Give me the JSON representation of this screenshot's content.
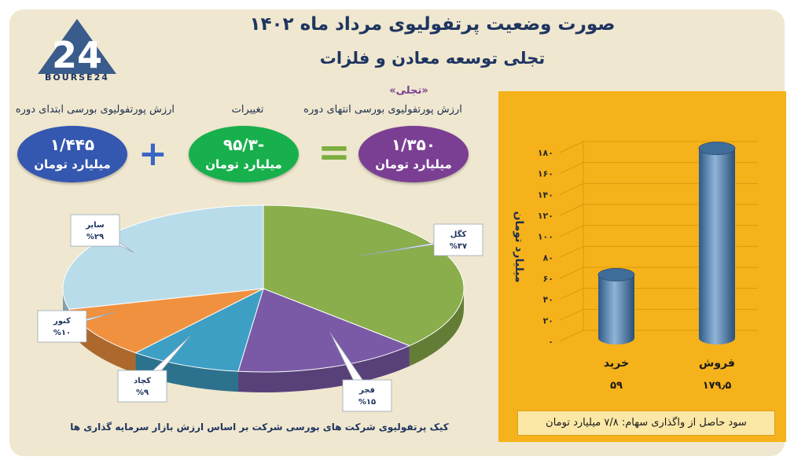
{
  "header": {
    "title": "صورت وضعیت پرتفولیوی مرداد ماه ۱۴۰۲",
    "subtitle": "تجلی توسعه معادن و فلزات",
    "logo_text": "BOURSE24"
  },
  "summary": {
    "tag": "«تجلی»",
    "start": {
      "caption": "ارزش پورتفولیوی بورسی ابتدای دوره",
      "value": "۱/۴۴۵",
      "unit": "میلیارد تومان",
      "color": "#3457b0"
    },
    "change": {
      "caption": "تغییرات",
      "value": "-۹۵/۳",
      "unit": "میلیارد تومان",
      "color": "#17b04c"
    },
    "end": {
      "caption": "ارزش پورتفولیوی بورسی انتهای دوره",
      "value": "۱/۳۵۰",
      "unit": "میلیارد تومان",
      "color": "#7a3f93"
    },
    "plus_sign": "+",
    "equals_sign": "="
  },
  "pie_caption": "کیک پرتفولیوی شرکت های بورسی شرکت بر اساس  ارزش بازار سرمایه گذاری ها",
  "footer_note": "سود حاصل از واگذاری سهام: ۷/۸ میلیارد تومان",
  "chart_data": [
    {
      "type": "pie",
      "slices": [
        {
          "name": "کگل",
          "label": "%۳۷",
          "value": 37,
          "color": "#8aae4b"
        },
        {
          "name": "فجر",
          "label": "%۱۵",
          "value": 15,
          "color": "#7a5aa6"
        },
        {
          "name": "کچاد",
          "label": "%۹",
          "value": 9,
          "color": "#3d9fc4"
        },
        {
          "name": "کنور",
          "label": "%۱۰",
          "value": 10,
          "color": "#f0913f"
        },
        {
          "name": "سایر",
          "label": "%۲۹",
          "value": 29,
          "color": "#b9dcea"
        }
      ]
    },
    {
      "type": "bar",
      "ylabel": "میلیارد تومان",
      "ylim": [
        0,
        180
      ],
      "yticks": [
        0,
        20,
        40,
        60,
        80,
        100,
        120,
        140,
        160,
        180
      ],
      "ytick_labels": [
        "۰",
        "۲۰",
        "۴۰",
        "۶۰",
        "۸۰",
        "۱۰۰",
        "۱۲۰",
        "۱۴۰",
        "۱۶۰",
        "۱۸۰"
      ],
      "categories": [
        "خرید",
        "فروش"
      ],
      "values": [
        59,
        179.5
      ],
      "value_labels": [
        "۵۹",
        "۱۷۹٫۵"
      ],
      "color": "#4f7fae"
    }
  ]
}
